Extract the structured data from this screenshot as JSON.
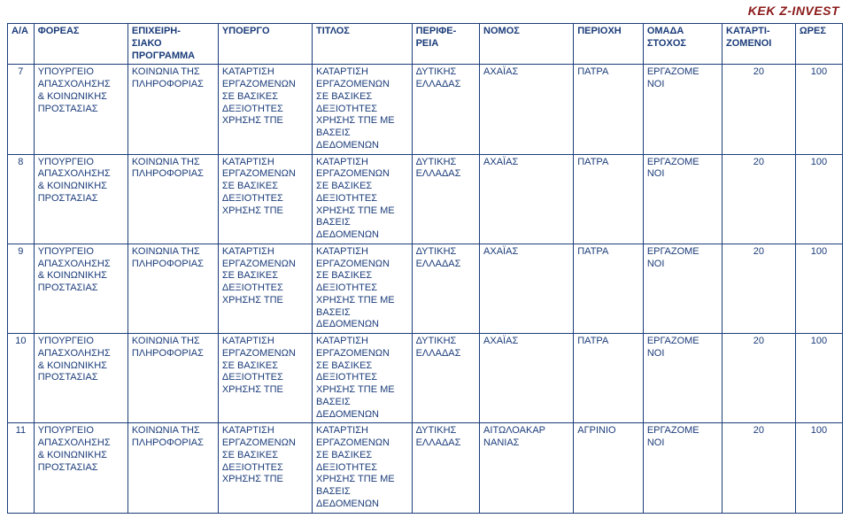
{
  "brand": "KEK Z-INVEST",
  "text_color": "#1b3c7a",
  "brand_color": "#8b1a1a",
  "columns": [
    "Α/Α",
    "ΦΟΡΕΑΣ",
    "ΕΠΙΧΕΙΡΗ-\nΣΙΑΚΟ\nΠΡΟΓΡΑΜΜΑ",
    "ΥΠΟΕΡΓΟ",
    "ΤΙΤΛΟΣ",
    "ΠΕΡΙΦΕ-\nΡΕΙΑ",
    "ΝΟΜΟΣ",
    "ΠΕΡΙΟΧΗ",
    "ΟΜΑΔΑ\nΣΤΟΧΟΣ",
    "ΚΑΤΑΡΤΙ-\nΖΟΜΕΝΟΙ",
    "ΩΡΕΣ"
  ],
  "col_keys": [
    "aa",
    "foreas",
    "prog",
    "ypoergo",
    "titlos",
    "perifereia",
    "nomos",
    "perioxh",
    "omada",
    "katart",
    "wres"
  ],
  "rows": [
    {
      "aa": "7",
      "foreas": "ΥΠΟΥΡΓΕΙΟ\nΑΠΑΣΧΟΛΗΣΗΣ\n& ΚΟΙΝΩΝΙΚΗΣ\nΠΡΟΣΤΑΣΙΑΣ",
      "prog": "ΚΟΙΝΩΝΙΑ ΤΗΣ\nΠΛΗΡΟΦΟΡΙΑΣ",
      "ypoergo": "ΚΑΤΑΡΤΙΣΗ\nΕΡΓΑΖΟΜΕΝΩΝ\nΣΕ ΒΑΣΙΚΕΣ\nΔΕΞΙΟΤΗΤΕΣ\nΧΡΗΣΗΣ ΤΠΕ",
      "titlos": "ΚΑΤΑΡΤΙΣΗ\nΕΡΓΑΖΟΜΕΝΩΝ\nΣΕ ΒΑΣΙΚΕΣ\nΔΕΞΙΟΤΗΤΕΣ\nΧΡΗΣΗΣ ΤΠΕ ΜΕ\nΒΑΣΕΙΣ\nΔΕΔΟΜΕΝΩΝ",
      "perifereia": "ΔΥΤΙΚΗΣ\nΕΛΛΑΔΑΣ",
      "nomos": "ΑΧΑΪΑΣ",
      "perioxh": "ΠΑΤΡΑ",
      "omada": "ΕΡΓΑΖΟΜΕ\nΝΟΙ",
      "katart": "20",
      "wres": "100"
    },
    {
      "aa": "8",
      "foreas": "ΥΠΟΥΡΓΕΙΟ\nΑΠΑΣΧΟΛΗΣΗΣ\n& ΚΟΙΝΩΝΙΚΗΣ\nΠΡΟΣΤΑΣΙΑΣ",
      "prog": "ΚΟΙΝΩΝΙΑ ΤΗΣ\nΠΛΗΡΟΦΟΡΙΑΣ",
      "ypoergo": "ΚΑΤΑΡΤΙΣΗ\nΕΡΓΑΖΟΜΕΝΩΝ\nΣΕ ΒΑΣΙΚΕΣ\nΔΕΞΙΟΤΗΤΕΣ\nΧΡΗΣΗΣ ΤΠΕ",
      "titlos": "ΚΑΤΑΡΤΙΣΗ\nΕΡΓΑΖΟΜΕΝΩΝ\nΣΕ ΒΑΣΙΚΕΣ\nΔΕΞΙΟΤΗΤΕΣ\nΧΡΗΣΗΣ ΤΠΕ ΜΕ\nΒΑΣΕΙΣ\nΔΕΔΟΜΕΝΩΝ",
      "perifereia": "ΔΥΤΙΚΗΣ\nΕΛΛΑΔΑΣ",
      "nomos": "ΑΧΑΪΑΣ",
      "perioxh": "ΠΑΤΡΑ",
      "omada": "ΕΡΓΑΖΟΜΕ\nΝΟΙ",
      "katart": "20",
      "wres": "100"
    },
    {
      "aa": "9",
      "foreas": "ΥΠΟΥΡΓΕΙΟ\nΑΠΑΣΧΟΛΗΣΗΣ\n& ΚΟΙΝΩΝΙΚΗΣ\nΠΡΟΣΤΑΣΙΑΣ",
      "prog": "ΚΟΙΝΩΝΙΑ ΤΗΣ\nΠΛΗΡΟΦΟΡΙΑΣ",
      "ypoergo": "ΚΑΤΑΡΤΙΣΗ\nΕΡΓΑΖΟΜΕΝΩΝ\nΣΕ ΒΑΣΙΚΕΣ\nΔΕΞΙΟΤΗΤΕΣ\nΧΡΗΣΗΣ ΤΠΕ",
      "titlos": "ΚΑΤΑΡΤΙΣΗ\nΕΡΓΑΖΟΜΕΝΩΝ\nΣΕ ΒΑΣΙΚΕΣ\nΔΕΞΙΟΤΗΤΕΣ\nΧΡΗΣΗΣ ΤΠΕ ΜΕ\nΒΑΣΕΙΣ\nΔΕΔΟΜΕΝΩΝ",
      "perifereia": "ΔΥΤΙΚΗΣ\nΕΛΛΑΔΑΣ",
      "nomos": "ΑΧΑΪΑΣ",
      "perioxh": "ΠΑΤΡΑ",
      "omada": "ΕΡΓΑΖΟΜΕ\nΝΟΙ",
      "katart": "20",
      "wres": "100"
    },
    {
      "aa": "10",
      "foreas": "ΥΠΟΥΡΓΕΙΟ\nΑΠΑΣΧΟΛΗΣΗΣ\n& ΚΟΙΝΩΝΙΚΗΣ\nΠΡΟΣΤΑΣΙΑΣ",
      "prog": "ΚΟΙΝΩΝΙΑ ΤΗΣ\nΠΛΗΡΟΦΟΡΙΑΣ",
      "ypoergo": "ΚΑΤΑΡΤΙΣΗ\nΕΡΓΑΖΟΜΕΝΩΝ\nΣΕ ΒΑΣΙΚΕΣ\nΔΕΞΙΟΤΗΤΕΣ\nΧΡΗΣΗΣ ΤΠΕ",
      "titlos": "ΚΑΤΑΡΤΙΣΗ\nΕΡΓΑΖΟΜΕΝΩΝ\nΣΕ ΒΑΣΙΚΕΣ\nΔΕΞΙΟΤΗΤΕΣ\nΧΡΗΣΗΣ ΤΠΕ ΜΕ\nΒΑΣΕΙΣ\nΔΕΔΟΜΕΝΩΝ",
      "perifereia": "ΔΥΤΙΚΗΣ\nΕΛΛΑΔΑΣ",
      "nomos": "ΑΧΑΪΑΣ",
      "perioxh": "ΠΑΤΡΑ",
      "omada": "ΕΡΓΑΖΟΜΕ\nΝΟΙ",
      "katart": "20",
      "wres": "100"
    },
    {
      "aa": "11",
      "foreas": "ΥΠΟΥΡΓΕΙΟ\nΑΠΑΣΧΟΛΗΣΗΣ\n& ΚΟΙΝΩΝΙΚΗΣ\nΠΡΟΣΤΑΣΙΑΣ",
      "prog": "ΚΟΙΝΩΝΙΑ ΤΗΣ\nΠΛΗΡΟΦΟΡΙΑΣ",
      "ypoergo": "ΚΑΤΑΡΤΙΣΗ\nΕΡΓΑΖΟΜΕΝΩΝ\nΣΕ ΒΑΣΙΚΕΣ\nΔΕΞΙΟΤΗΤΕΣ\nΧΡΗΣΗΣ ΤΠΕ",
      "titlos": "ΚΑΤΑΡΤΙΣΗ\nΕΡΓΑΖΟΜΕΝΩΝ\nΣΕ ΒΑΣΙΚΕΣ\nΔΕΞΙΟΤΗΤΕΣ\nΧΡΗΣΗΣ ΤΠΕ ΜΕ\nΒΑΣΕΙΣ\nΔΕΔΟΜΕΝΩΝ",
      "perifereia": "ΔΥΤΙΚΗΣ\nΕΛΛΑΔΑΣ",
      "nomos": "ΑΙΤΩΛΟΑΚΑΡ\nΝΑΝΙΑΣ",
      "perioxh": "ΑΓΡΙΝΙΟ",
      "omada": "ΕΡΓΑΖΟΜΕ\nΝΟΙ",
      "katart": "20",
      "wres": "100"
    }
  ]
}
